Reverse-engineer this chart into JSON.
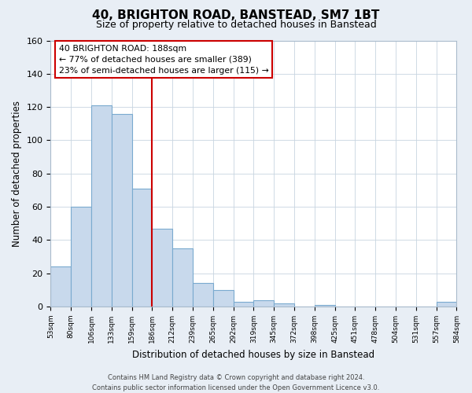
{
  "title": "40, BRIGHTON ROAD, BANSTEAD, SM7 1BT",
  "subtitle": "Size of property relative to detached houses in Banstead",
  "xlabel": "Distribution of detached houses by size in Banstead",
  "ylabel": "Number of detached properties",
  "bin_labels": [
    "53sqm",
    "80sqm",
    "106sqm",
    "133sqm",
    "159sqm",
    "186sqm",
    "212sqm",
    "239sqm",
    "265sqm",
    "292sqm",
    "319sqm",
    "345sqm",
    "372sqm",
    "398sqm",
    "425sqm",
    "451sqm",
    "478sqm",
    "504sqm",
    "531sqm",
    "557sqm",
    "584sqm"
  ],
  "bar_values": [
    24,
    60,
    121,
    116,
    71,
    47,
    35,
    14,
    10,
    3,
    4,
    2,
    0,
    1,
    0,
    0,
    0,
    0,
    0,
    3
  ],
  "bar_color": "#c8d9ec",
  "bar_edge_color": "#7aaacf",
  "reference_line_color": "#cc0000",
  "annotation_line1": "40 BRIGHTON ROAD: 188sqm",
  "annotation_line2": "← 77% of detached houses are smaller (389)",
  "annotation_line3": "23% of semi-detached houses are larger (115) →",
  "annotation_box_color": "#ffffff",
  "annotation_box_edge": "#cc0000",
  "ylim": [
    0,
    160
  ],
  "yticks": [
    0,
    20,
    40,
    60,
    80,
    100,
    120,
    140,
    160
  ],
  "footer_text": "Contains HM Land Registry data © Crown copyright and database right 2024.\nContains public sector information licensed under the Open Government Licence v3.0.",
  "background_color": "#e8eef5",
  "plot_background_color": "#ffffff",
  "grid_color": "#c8d4e0"
}
